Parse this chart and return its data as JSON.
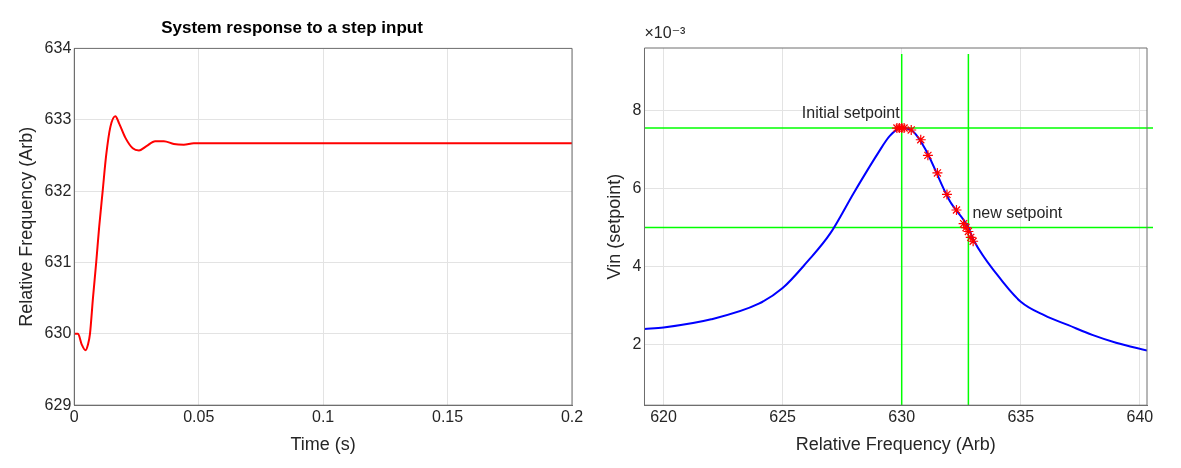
{
  "chart_data": [
    {
      "type": "line",
      "title": "System response to a step input",
      "xlabel": "Time (s)",
      "ylabel": "Relative Frequency (Arb)",
      "xlim": [
        0,
        0.2
      ],
      "xticks": [
        0,
        0.05,
        0.1,
        0.15,
        0.2
      ],
      "ylim": [
        629,
        634
      ],
      "yticks": [
        629,
        630,
        631,
        632,
        633,
        634
      ],
      "grid": true,
      "marker": "none",
      "series": [
        {
          "color": "#ff0000",
          "x": [
            0,
            0.0015,
            0.003,
            0.0045,
            0.0055,
            0.0063,
            0.0075,
            0.0088,
            0.01,
            0.0114,
            0.0128,
            0.0145,
            0.0165,
            0.018,
            0.0205,
            0.0235,
            0.026,
            0.029,
            0.0325,
            0.036,
            0.04,
            0.044,
            0.048,
            0.2
          ],
          "values": [
            630,
            630,
            629.85,
            629.77,
            629.85,
            630,
            630.5,
            631,
            631.5,
            632,
            632.5,
            632.9,
            633.05,
            632.95,
            632.75,
            632.6,
            632.57,
            632.63,
            632.7,
            632.7,
            632.66,
            632.65,
            632.67,
            632.67
          ]
        }
      ]
    },
    {
      "type": "line",
      "xlabel": "Relative Frequency (Arb)",
      "ylabel": "Vin (setpoint)",
      "xlim": [
        619.2,
        640.3
      ],
      "xticks": [
        620,
        625,
        630,
        635,
        640
      ],
      "ylim": [
        0.45,
        9.6
      ],
      "yticks": [
        2,
        4,
        6,
        8
      ],
      "grid": true,
      "annotations": [
        "×10⁻³",
        {
          "text": "Initial setpoint",
          "x": 630,
          "y": 7.55
        },
        {
          "text": "new setpoint",
          "x": 632.8,
          "y": 5
        }
      ],
      "ref_lines": [
        {
          "axis": "x",
          "value": 630,
          "color": "#00ff00"
        },
        {
          "axis": "x",
          "value": 632.8,
          "color": "#00ff00"
        },
        {
          "axis": "y",
          "value": 7.55,
          "color": "#00ff00"
        },
        {
          "axis": "y",
          "value": 5,
          "color": "#00ff00"
        }
      ],
      "series": [
        {
          "marker": "none",
          "color": "#0000ff",
          "x": [
            619.2,
            620,
            622,
            624,
            625,
            626,
            627,
            628,
            629,
            629.5,
            630,
            630.5,
            631,
            632,
            632.8,
            633,
            634,
            635,
            636,
            637,
            638,
            639,
            640.3
          ],
          "values": [
            2.4,
            2.44,
            2.65,
            3.05,
            3.45,
            4.1,
            4.85,
            5.9,
            6.9,
            7.35,
            7.55,
            7.45,
            7.0,
            5.7,
            5.0,
            4.7,
            3.8,
            3.1,
            2.75,
            2.5,
            2.25,
            2.05,
            1.85
          ]
        },
        {
          "type": "scatter",
          "marker": "cross",
          "color": "#ff0000",
          "x": [
            629.8,
            629.9,
            630,
            630.1,
            630.4,
            630.8,
            631.1,
            631.5,
            631.9,
            632.3,
            632.6,
            632.7,
            632.8,
            632.9,
            633
          ],
          "values": [
            7.55,
            7.55,
            7.55,
            7.55,
            7.5,
            7.25,
            6.85,
            6.4,
            5.85,
            5.45,
            5.1,
            5.0,
            4.9,
            4.75,
            4.65
          ]
        }
      ]
    }
  ]
}
